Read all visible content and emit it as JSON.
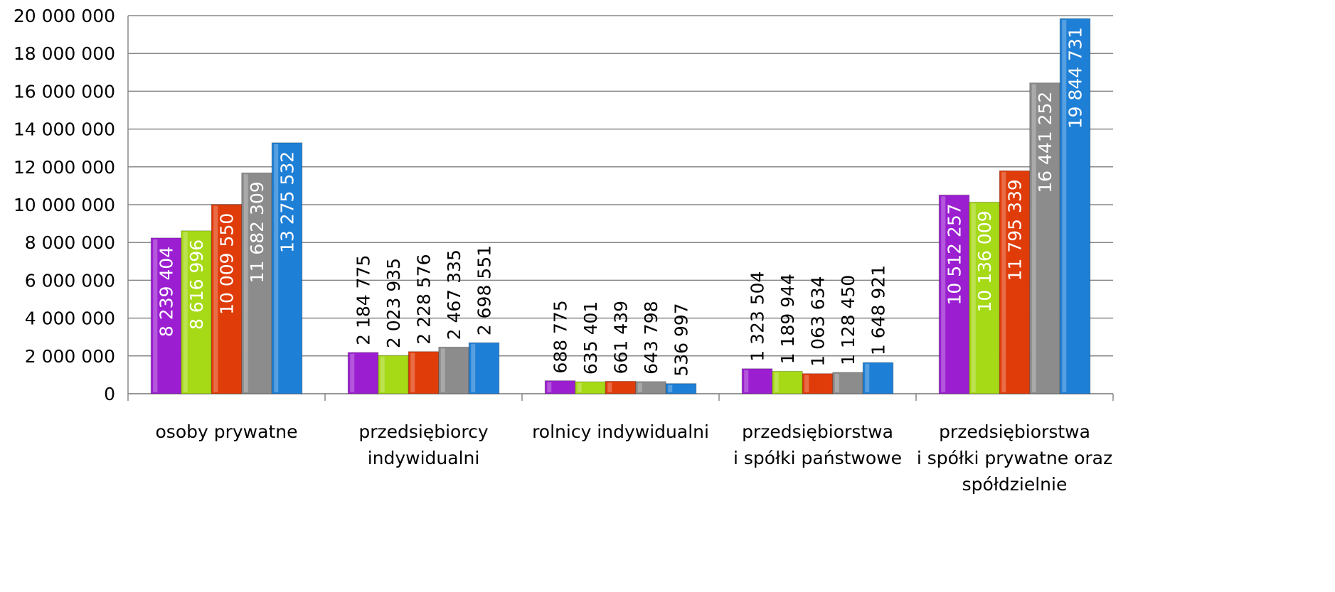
{
  "chart_data": {
    "type": "bar",
    "categories": [
      "osoby prywatne",
      "przedsiębiorcy\nindywidualni",
      "rolnicy indywidualni",
      "przedsiębiorstwa\ni spółki państwowe",
      "przedsiębiorstwa\ni spółki prywatne oraz\nspółdzielnie"
    ],
    "series": [
      {
        "color": "#9b1fd1",
        "values": [
          8239404,
          2184775,
          688775,
          1323504,
          10512257
        ],
        "value_labels": [
          "8 239 404",
          "2 184 775",
          "688 775",
          "1 323 504",
          "10 512 257"
        ]
      },
      {
        "color": "#a6d916",
        "values": [
          8616996,
          2023935,
          635401,
          1189944,
          10136009
        ],
        "value_labels": [
          "8 616 996",
          "2 023 935",
          "635 401",
          "1 189 944",
          "10 136 009"
        ]
      },
      {
        "color": "#e03c0a",
        "values": [
          10009550,
          2228576,
          661439,
          1063634,
          11795339
        ],
        "value_labels": [
          "10 009 550",
          "2 228 576",
          "661 439",
          "1 063 634",
          "11 795 339"
        ]
      },
      {
        "color": "#8c8c8c",
        "values": [
          11682309,
          2467335,
          643798,
          1128450,
          16441252
        ],
        "value_labels": [
          "11 682 309",
          "2 467 335",
          "643 798",
          "1 128 450",
          "16 441 252"
        ]
      },
      {
        "color": "#1e7fd6",
        "values": [
          13275532,
          2698551,
          536997,
          1648921,
          19844731
        ],
        "value_labels": [
          "13 275 532",
          "2 698 551",
          "536 997",
          "1 648 921",
          "19 844 731"
        ]
      }
    ],
    "ylim": [
      0,
      20000000
    ],
    "yticks": [
      0,
      {
        "value": 2000000,
        "label": "2 000 000"
      },
      {
        "value": 4000000,
        "label": "4 000 000"
      },
      {
        "value": 6000000,
        "label": "6 000 000"
      },
      {
        "value": 8000000,
        "label": "8 000 000"
      },
      {
        "value": 10000000,
        "label": "10 000 000"
      },
      {
        "value": 12000000,
        "label": "12 000 000"
      },
      {
        "value": 14000000,
        "label": "14 000 000"
      },
      {
        "value": 16000000,
        "label": "16 000 000"
      },
      {
        "value": 18000000,
        "label": "18 000 000"
      },
      {
        "value": 20000000,
        "label": "20 000 000"
      }
    ],
    "grid": true
  }
}
